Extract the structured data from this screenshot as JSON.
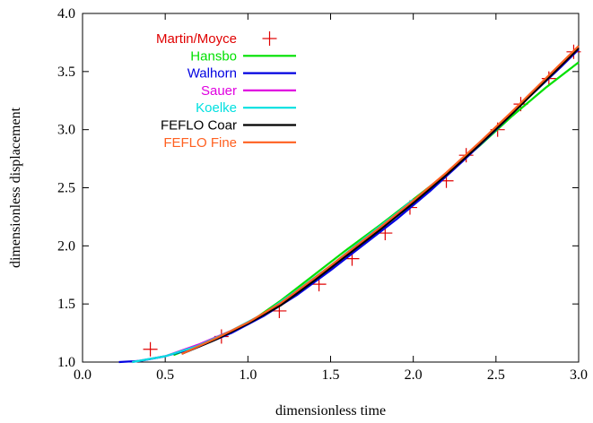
{
  "chart_data": {
    "type": "line",
    "xlabel": "dimensionless time",
    "ylabel": "dimensionless displacement",
    "xlim": [
      0.0,
      3.0
    ],
    "ylim": [
      1.0,
      4.0
    ],
    "xticks": [
      "0.0",
      "0.5",
      "1.0",
      "1.5",
      "2.0",
      "2.5",
      "3.0"
    ],
    "yticks": [
      "1.0",
      "1.5",
      "2.0",
      "2.5",
      "3.0",
      "3.5",
      "4.0"
    ],
    "grid": false,
    "legend_position": "top-left",
    "series": [
      {
        "name": "Martin/Moyce",
        "style": "markers",
        "marker": "plus",
        "color": "#e00000",
        "x": [
          0.41,
          0.84,
          1.19,
          1.43,
          1.63,
          1.83,
          1.98,
          2.2,
          2.32,
          2.51,
          2.65,
          2.82,
          2.97
        ],
        "y": [
          1.11,
          1.22,
          1.44,
          1.67,
          1.89,
          2.11,
          2.33,
          2.56,
          2.78,
          3.0,
          3.22,
          3.44,
          3.67
        ]
      },
      {
        "name": "Hansbo",
        "style": "line",
        "color": "#00e000",
        "x": [
          0.55,
          0.8,
          1.0,
          1.2,
          1.4,
          1.6,
          1.8,
          2.0,
          2.2,
          2.4,
          2.6,
          2.8,
          3.0
        ],
        "y": [
          1.06,
          1.2,
          1.33,
          1.53,
          1.75,
          1.97,
          2.18,
          2.4,
          2.62,
          2.86,
          3.12,
          3.36,
          3.58
        ]
      },
      {
        "name": "Walhorn",
        "style": "line",
        "color": "#0000e0",
        "x": [
          0.22,
          0.35,
          0.5,
          0.7,
          0.9,
          1.1,
          1.3,
          1.5,
          1.7,
          1.9,
          2.1,
          2.3,
          2.5,
          2.7,
          2.9,
          3.0
        ],
        "y": [
          1.0,
          1.01,
          1.05,
          1.13,
          1.25,
          1.4,
          1.58,
          1.79,
          2.01,
          2.23,
          2.47,
          2.73,
          3.0,
          3.28,
          3.55,
          3.69
        ]
      },
      {
        "name": "Sauer",
        "style": "line",
        "color": "#e000e0",
        "x": [
          0.3,
          0.5,
          0.7,
          0.9,
          1.1,
          1.3,
          1.5,
          1.7,
          1.9,
          2.1,
          2.3,
          2.5,
          2.7,
          2.9,
          3.0
        ],
        "y": [
          1.0,
          1.05,
          1.15,
          1.27,
          1.41,
          1.6,
          1.81,
          2.03,
          2.26,
          2.5,
          2.75,
          3.02,
          3.29,
          3.56,
          3.7
        ]
      },
      {
        "name": "Koelke",
        "style": "line",
        "color": "#00e0e0",
        "x": [
          0.3,
          0.5,
          0.7,
          0.9,
          1.1,
          1.3,
          1.5,
          1.7,
          1.9,
          2.0
        ],
        "y": [
          1.0,
          1.05,
          1.14,
          1.27,
          1.42,
          1.62,
          1.83,
          2.06,
          2.28,
          2.4
        ]
      },
      {
        "name": "FEFLO Coar",
        "style": "line",
        "color": "#000000",
        "x": [
          0.6,
          0.8,
          1.0,
          1.2,
          1.4,
          1.6,
          1.8,
          2.0,
          2.2,
          2.4,
          2.6,
          2.8,
          3.0
        ],
        "y": [
          1.07,
          1.19,
          1.33,
          1.49,
          1.7,
          1.92,
          2.14,
          2.37,
          2.61,
          2.87,
          3.14,
          3.42,
          3.7
        ]
      },
      {
        "name": "FEFLO Fine",
        "style": "line",
        "color": "#ff6020",
        "x": [
          0.6,
          0.8,
          1.0,
          1.2,
          1.4,
          1.6,
          1.8,
          2.0,
          2.2,
          2.4,
          2.6,
          2.8,
          3.0
        ],
        "y": [
          1.07,
          1.2,
          1.34,
          1.51,
          1.72,
          1.94,
          2.16,
          2.39,
          2.63,
          2.89,
          3.16,
          3.44,
          3.72
        ]
      }
    ]
  }
}
